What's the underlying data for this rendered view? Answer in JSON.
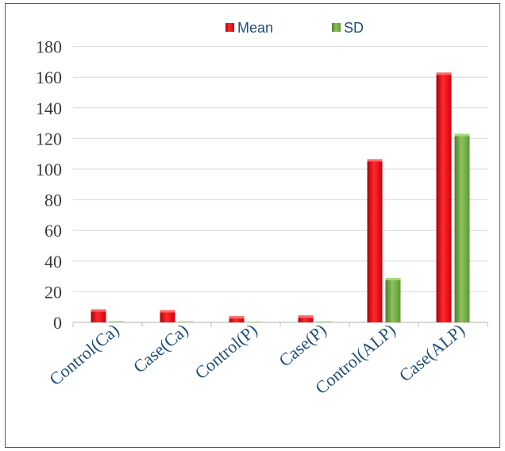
{
  "chart_data": {
    "type": "bar",
    "categories": [
      "Control(Ca)",
      "Case(Ca)",
      "Control(P)",
      "Case(P)",
      "Control(ALP)",
      "Case(ALP)"
    ],
    "series": [
      {
        "name": "Mean",
        "values": [
          8.5,
          8,
          4,
          4.5,
          106.5,
          163
        ],
        "color": "#e60012"
      },
      {
        "name": "SD",
        "values": [
          0.8,
          0.6,
          0.5,
          0.6,
          29,
          123
        ],
        "color": "#6da540"
      }
    ],
    "y_ticks": [
      "0",
      "20",
      "40",
      "60",
      "80",
      "100",
      "120",
      "140",
      "160",
      "180"
    ],
    "ylim": [
      0,
      190
    ],
    "grid": true,
    "legend_position": "top",
    "title": "",
    "xlabel": "",
    "ylabel": ""
  }
}
